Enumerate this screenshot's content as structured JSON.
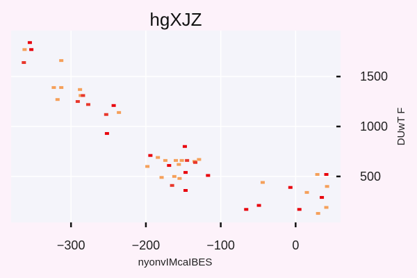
{
  "chart_data": {
    "type": "scatter",
    "title": "hgXJZ",
    "xlabel": "nyonvIMcaIBES",
    "ylabel": "DUwT F",
    "xlim": [
      -380,
      60
    ],
    "ylim": [
      40,
      1960
    ],
    "xticks": [
      -300,
      -200,
      -100,
      0
    ],
    "xtick_labels": [
      "−300",
      "−200",
      "−100",
      "0"
    ],
    "yticks": [
      500,
      1000,
      1500
    ],
    "ytick_labels": [
      "500",
      "1000",
      "1500"
    ],
    "y_axis_side": "right",
    "grid": true,
    "colors": {
      "background": "#fdf2fa",
      "plot_area": "#f4f4fa",
      "grid": "#ffffff",
      "series_red": "#e8000b",
      "series_orange": "#f5a05a",
      "series_redorange": "#e8372b"
    },
    "series": [
      {
        "color_key": "series_red",
        "points": [
          {
            "x": -355,
            "y": 1840
          },
          {
            "x": -353,
            "y": 1770
          },
          {
            "x": -243,
            "y": 1210
          },
          {
            "x": -252,
            "y": 930
          },
          {
            "x": -194,
            "y": 710
          },
          {
            "x": -148,
            "y": 800
          },
          {
            "x": -169,
            "y": 610
          },
          {
            "x": -147,
            "y": 540
          },
          {
            "x": -117,
            "y": 510
          },
          {
            "x": -147,
            "y": 360
          },
          {
            "x": -66,
            "y": 170
          },
          {
            "x": -49,
            "y": 210
          },
          {
            "x": -7,
            "y": 390
          },
          {
            "x": 5,
            "y": 170
          },
          {
            "x": 35,
            "y": 290
          },
          {
            "x": 41,
            "y": 520
          }
        ]
      },
      {
        "color_key": "series_orange",
        "points": [
          {
            "x": -362,
            "y": 1770
          },
          {
            "x": -313,
            "y": 1660
          },
          {
            "x": -323,
            "y": 1390
          },
          {
            "x": -313,
            "y": 1390
          },
          {
            "x": -288,
            "y": 1370
          },
          {
            "x": -287,
            "y": 1310
          },
          {
            "x": -318,
            "y": 1270
          },
          {
            "x": -236,
            "y": 1140
          },
          {
            "x": -198,
            "y": 600
          },
          {
            "x": -184,
            "y": 690
          },
          {
            "x": -174,
            "y": 660
          },
          {
            "x": -160,
            "y": 660
          },
          {
            "x": -152,
            "y": 660
          },
          {
            "x": -156,
            "y": 620
          },
          {
            "x": -135,
            "y": 650
          },
          {
            "x": -129,
            "y": 670
          },
          {
            "x": -179,
            "y": 490
          },
          {
            "x": -162,
            "y": 500
          },
          {
            "x": -155,
            "y": 480
          },
          {
            "x": -44,
            "y": 440
          },
          {
            "x": 29,
            "y": 520
          },
          {
            "x": 42,
            "y": 400
          },
          {
            "x": 15,
            "y": 340
          },
          {
            "x": 41,
            "y": 190
          },
          {
            "x": 30,
            "y": 130
          }
        ]
      },
      {
        "color_key": "series_redorange",
        "points": [
          {
            "x": -363,
            "y": 1640
          },
          {
            "x": -284,
            "y": 1310
          },
          {
            "x": -291,
            "y": 1250
          },
          {
            "x": -277,
            "y": 1220
          },
          {
            "x": -253,
            "y": 1120
          },
          {
            "x": -145,
            "y": 660
          },
          {
            "x": -134,
            "y": 640
          },
          {
            "x": -165,
            "y": 410
          }
        ]
      }
    ]
  }
}
